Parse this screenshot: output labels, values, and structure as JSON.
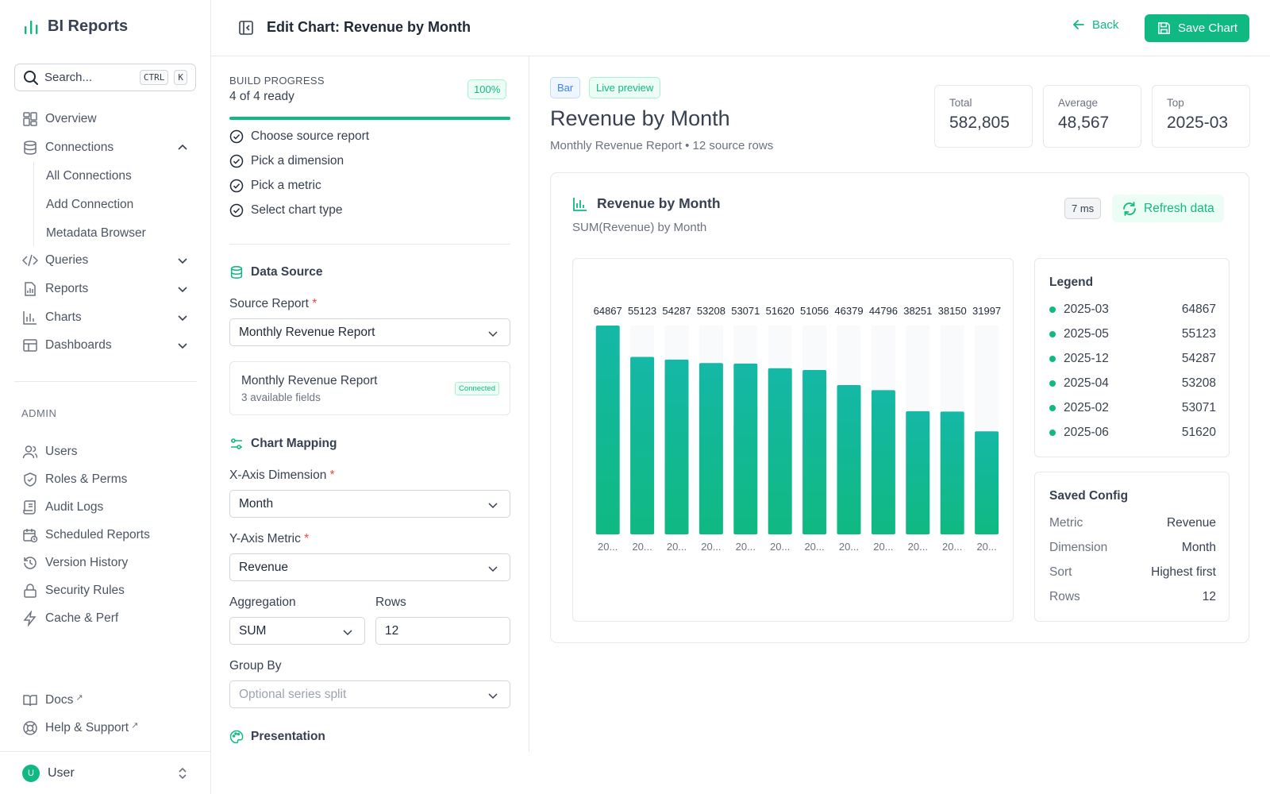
{
  "app": {
    "name": "BI Reports"
  },
  "search": {
    "placeholder": "Search...",
    "kbd1": "CTRL",
    "kbd2": "K"
  },
  "nav": {
    "overview": "Overview",
    "connections": "Connections",
    "connections_sub": [
      "All Connections",
      "Add Connection",
      "Metadata Browser"
    ],
    "queries": "Queries",
    "reports": "Reports",
    "charts": "Charts",
    "dashboards": "Dashboards"
  },
  "admin": {
    "label": "ADMIN",
    "items": [
      "Users",
      "Roles & Perms",
      "Audit Logs",
      "Scheduled Reports",
      "Version History",
      "Security Rules",
      "Cache & Perf"
    ]
  },
  "footer_links": {
    "docs": "Docs",
    "help": "Help & Support",
    "ext": "↗"
  },
  "user": {
    "initial": "U",
    "name": "User"
  },
  "header": {
    "title": "Edit Chart: Revenue by Month",
    "back": "Back",
    "save": "Save Chart"
  },
  "builder": {
    "progress_label": "BUILD PROGRESS",
    "progress_count": "4 of 4 ready",
    "progress_pct": "100%",
    "progress_value": 1.0,
    "steps": [
      "Choose source report",
      "Pick a dimension",
      "Pick a metric",
      "Select chart type"
    ],
    "data_source_title": "Data Source",
    "source_report_label": "Source Report",
    "source_report_value": "Monthly Revenue Report",
    "source_card": {
      "name": "Monthly Revenue Report",
      "fields": "3 available fields",
      "status": "Connected"
    },
    "mapping_title": "Chart Mapping",
    "x_label": "X-Axis Dimension",
    "x_value": "Month",
    "y_label": "Y-Axis Metric",
    "y_value": "Revenue",
    "agg_label": "Aggregation",
    "agg_value": "SUM",
    "rows_label": "Rows",
    "rows_value": "12",
    "group_label": "Group By",
    "group_placeholder": "Optional series split",
    "presentation_title": "Presentation",
    "required_mark": "*"
  },
  "preview": {
    "tag_type": "Bar",
    "tag_live": "Live preview",
    "title": "Revenue by Month",
    "subtitle": "Monthly Revenue Report • 12 source rows",
    "stats": [
      {
        "label": "Total",
        "value": "582,805"
      },
      {
        "label": "Average",
        "value": "48,567"
      },
      {
        "label": "Top",
        "value": "2025-03"
      }
    ],
    "card_title": "Revenue by Month",
    "card_subtitle": "SUM(Revenue) by Month",
    "latency": "7 ms",
    "refresh": "Refresh data"
  },
  "legend": {
    "title": "Legend",
    "items": [
      {
        "label": "2025-03",
        "value": "64867"
      },
      {
        "label": "2025-05",
        "value": "55123"
      },
      {
        "label": "2025-12",
        "value": "54287"
      },
      {
        "label": "2025-04",
        "value": "53208"
      },
      {
        "label": "2025-02",
        "value": "53071"
      },
      {
        "label": "2025-06",
        "value": "51620"
      }
    ]
  },
  "config": {
    "title": "Saved Config",
    "rows": [
      {
        "key": "Metric",
        "value": "Revenue"
      },
      {
        "key": "Dimension",
        "value": "Month"
      },
      {
        "key": "Sort",
        "value": "Highest first"
      },
      {
        "key": "Rows",
        "value": "12"
      }
    ]
  },
  "colors": {
    "accent": "#10b981",
    "bar_top": "#14b8a6",
    "bar_bottom": "#10b981"
  },
  "chart_data": {
    "type": "bar",
    "title": "",
    "xlabel": "",
    "ylabel": "",
    "categories": [
      "20...",
      "20...",
      "20...",
      "20...",
      "20...",
      "20...",
      "20...",
      "20...",
      "20...",
      "20...",
      "20...",
      "20..."
    ],
    "values": [
      64867,
      55123,
      54287,
      53208,
      53071,
      51620,
      51056,
      46379,
      44796,
      38251,
      38150,
      31997
    ],
    "value_labels": [
      "64867",
      "55123",
      "54287",
      "53208",
      "53071",
      "51620",
      "51056",
      "46379",
      "44796",
      "38251",
      "38150",
      "31997"
    ],
    "ylim": [
      0,
      64867
    ],
    "grid": false,
    "legend": "none"
  }
}
